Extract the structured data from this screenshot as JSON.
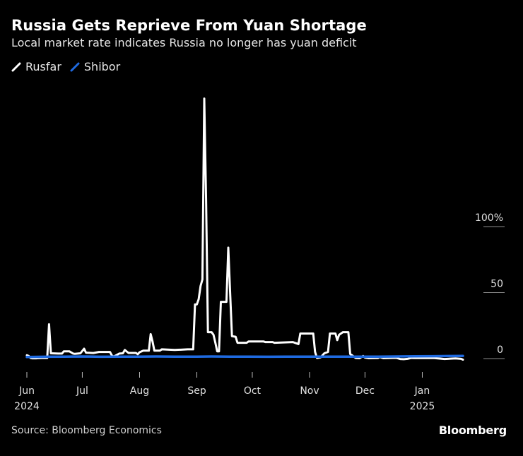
{
  "header": {
    "title": "Russia Gets Reprieve From Yuan Shortage",
    "subtitle": "Local market rate indicates Russia no longer has yuan deficit"
  },
  "footer": {
    "source": "Source: Bloomberg Economics",
    "logo": "Bloomberg"
  },
  "chart_data": {
    "type": "line",
    "title": "Russia Gets Reprieve From Yuan Shortage",
    "subtitle": "Local market rate indicates Russia no longer has yuan deficit",
    "xlabel": "",
    "ylabel": "",
    "ylim": [
      0,
      100
    ],
    "y_ticks": [
      {
        "value": 100,
        "label": "100%"
      },
      {
        "value": 50,
        "label": "50"
      },
      {
        "value": 0,
        "label": "0"
      }
    ],
    "x_ticks": [
      {
        "value": 0,
        "label": "Jun",
        "sublabel": "2024"
      },
      {
        "value": 30,
        "label": "Jul",
        "sublabel": ""
      },
      {
        "value": 61,
        "label": "Aug",
        "sublabel": ""
      },
      {
        "value": 92,
        "label": "Sep",
        "sublabel": ""
      },
      {
        "value": 122,
        "label": "Oct",
        "sublabel": ""
      },
      {
        "value": 153,
        "label": "Nov",
        "sublabel": ""
      },
      {
        "value": 183,
        "label": "Dec",
        "sublabel": ""
      },
      {
        "value": 214,
        "label": "Jan",
        "sublabel": "2025"
      }
    ],
    "x_unit": "days since 2024-06-01",
    "legend_position": "top-left",
    "grid": false,
    "series": [
      {
        "name": "Rusfar",
        "color": "#ffffff",
        "points": [
          [
            0,
            2.5
          ],
          [
            1,
            2.0
          ],
          [
            2,
            0.5
          ],
          [
            3,
            0.2
          ],
          [
            4,
            0.2
          ],
          [
            5,
            0.2
          ],
          [
            6,
            0.3
          ],
          [
            8,
            0.5
          ],
          [
            11,
            0.5
          ],
          [
            12,
            26
          ],
          [
            13,
            4
          ],
          [
            17,
            3.8
          ],
          [
            19,
            3.8
          ],
          [
            20,
            5.5
          ],
          [
            23,
            5.5
          ],
          [
            25,
            3.8
          ],
          [
            26,
            3.6
          ],
          [
            29,
            4
          ],
          [
            31,
            7.5
          ],
          [
            32,
            4.5
          ],
          [
            36,
            4.2
          ],
          [
            39,
            5
          ],
          [
            45,
            5
          ],
          [
            46,
            2.3
          ],
          [
            47,
            1.5
          ],
          [
            50,
            3.8
          ],
          [
            52,
            4
          ],
          [
            53,
            6.5
          ],
          [
            55,
            4.3
          ],
          [
            59,
            4.3
          ],
          [
            60,
            3.3
          ],
          [
            61,
            4.8
          ],
          [
            63,
            6
          ],
          [
            66,
            6
          ],
          [
            67,
            18.5
          ],
          [
            68,
            13
          ],
          [
            69,
            6
          ],
          [
            72,
            6
          ],
          [
            73,
            7
          ],
          [
            80,
            6.5
          ],
          [
            87,
            7
          ],
          [
            90,
            7
          ],
          [
            91,
            41
          ],
          [
            92,
            41
          ],
          [
            93,
            45
          ],
          [
            94,
            55
          ],
          [
            95,
            60
          ],
          [
            96,
            197
          ],
          [
            97,
            120
          ],
          [
            98,
            20
          ],
          [
            100,
            20
          ],
          [
            101,
            18
          ],
          [
            102,
            12
          ],
          [
            103,
            5.5
          ],
          [
            104,
            5.5
          ],
          [
            105,
            43
          ],
          [
            108,
            43
          ],
          [
            109,
            84
          ],
          [
            110,
            50
          ],
          [
            111,
            17
          ],
          [
            113,
            16.5
          ],
          [
            114,
            12
          ],
          [
            119,
            12
          ],
          [
            120,
            13
          ],
          [
            128,
            13
          ],
          [
            129,
            12.5
          ],
          [
            133,
            12.5
          ],
          [
            134,
            12
          ],
          [
            144,
            12.5
          ],
          [
            145,
            12
          ],
          [
            147,
            11
          ],
          [
            148,
            19
          ],
          [
            153,
            19
          ],
          [
            155,
            19
          ],
          [
            156,
            5
          ],
          [
            157,
            0.5
          ],
          [
            159,
            1
          ],
          [
            161,
            4
          ],
          [
            163,
            5
          ],
          [
            164,
            19
          ],
          [
            167,
            19
          ],
          [
            168,
            14
          ],
          [
            169,
            18
          ],
          [
            171,
            20
          ],
          [
            172,
            20
          ],
          [
            174,
            20
          ],
          [
            175,
            3.5
          ],
          [
            178,
            0.5
          ],
          [
            180,
            0.3
          ],
          [
            182,
            2
          ],
          [
            183,
            0.8
          ],
          [
            185,
            0.3
          ],
          [
            190,
            0.5
          ],
          [
            191,
            1.2
          ],
          [
            193,
            0.3
          ],
          [
            200,
            0.6
          ],
          [
            202,
            -0.3
          ],
          [
            204,
            -0.5
          ],
          [
            206,
            -0.2
          ],
          [
            208,
            0.5
          ],
          [
            210,
            0.4
          ],
          [
            220,
            0.5
          ],
          [
            226,
            -0.3
          ],
          [
            232,
            0.1
          ],
          [
            235,
            -0.2
          ],
          [
            236,
            -0.8
          ]
        ]
      },
      {
        "name": "Shibor",
        "color": "#1f6ae0",
        "points": [
          [
            0,
            1.2
          ],
          [
            10,
            1.4
          ],
          [
            20,
            1.5
          ],
          [
            30,
            1.6
          ],
          [
            40,
            1.4
          ],
          [
            50,
            1.5
          ],
          [
            60,
            1.5
          ],
          [
            70,
            1.6
          ],
          [
            80,
            1.5
          ],
          [
            92,
            1.5
          ],
          [
            100,
            1.6
          ],
          [
            110,
            1.5
          ],
          [
            120,
            1.5
          ],
          [
            130,
            1.4
          ],
          [
            140,
            1.5
          ],
          [
            150,
            1.5
          ],
          [
            160,
            1.5
          ],
          [
            170,
            1.5
          ],
          [
            180,
            1.5
          ],
          [
            190,
            1.5
          ],
          [
            200,
            1.6
          ],
          [
            210,
            1.7
          ],
          [
            220,
            1.8
          ],
          [
            230,
            1.9
          ],
          [
            236,
            2.0
          ]
        ]
      }
    ]
  }
}
